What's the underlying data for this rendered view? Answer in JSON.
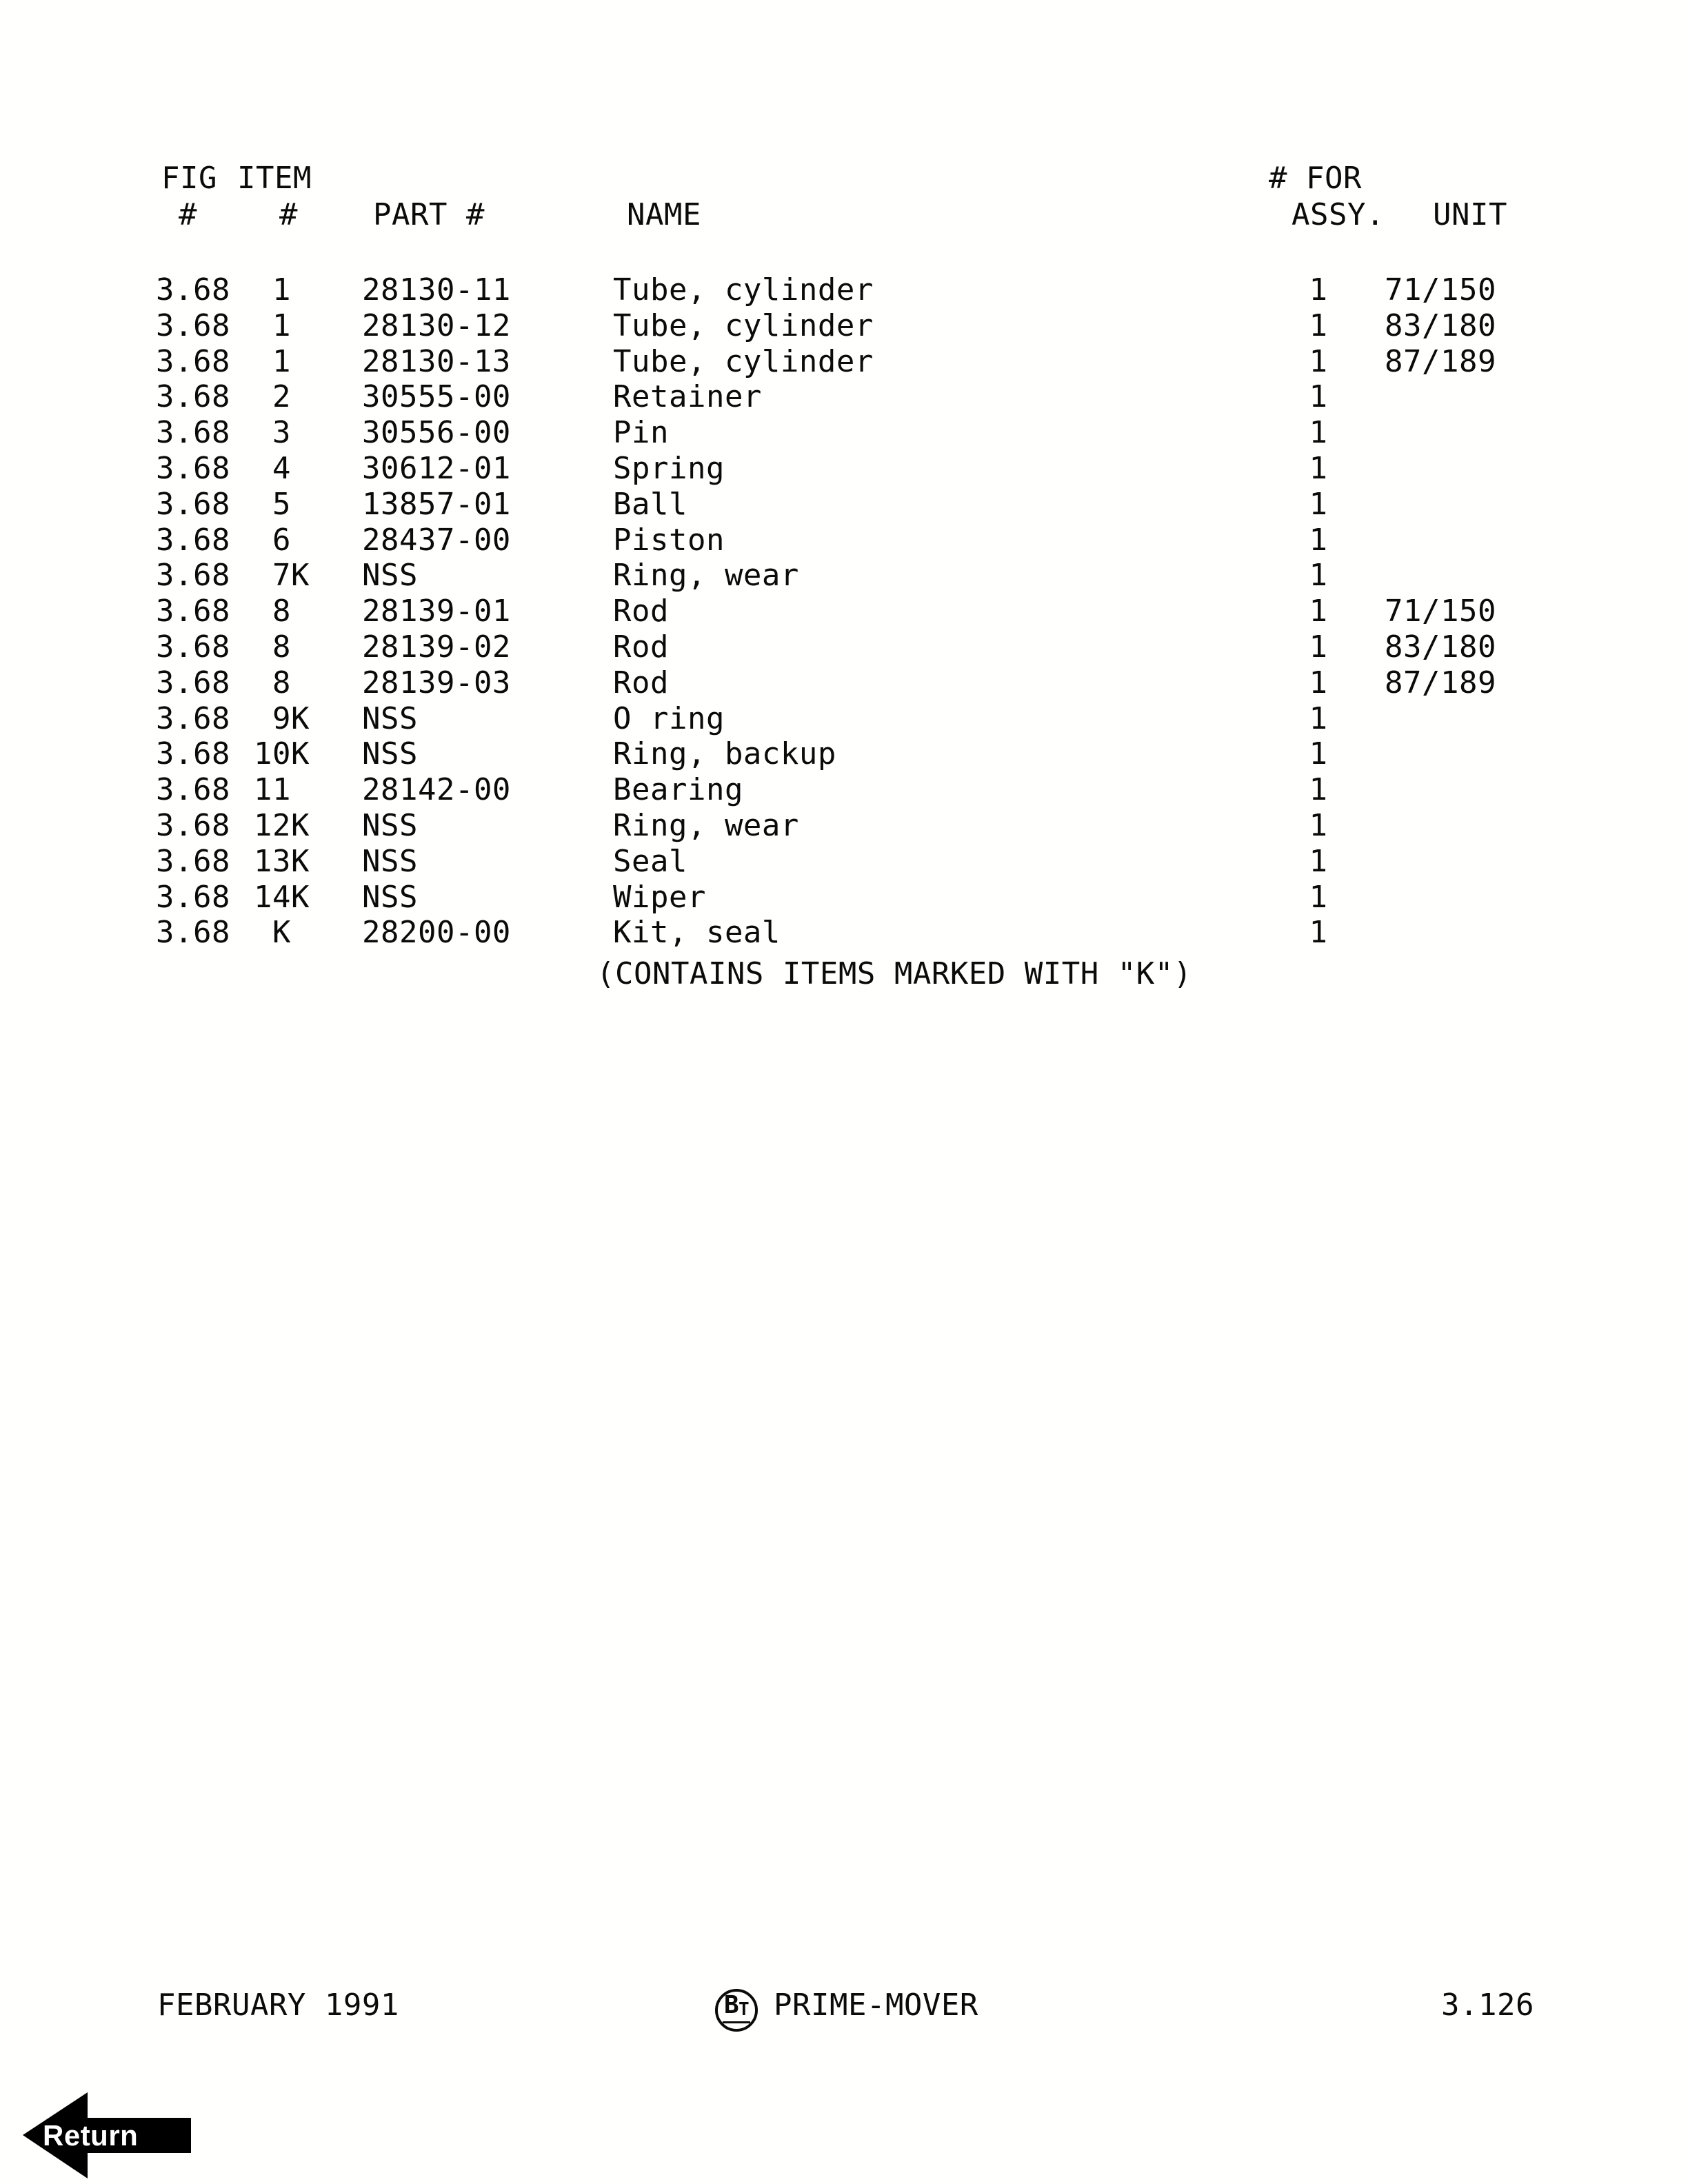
{
  "page": {
    "background": "#ffffff",
    "ink": "#0b0b0b"
  },
  "table": {
    "header": {
      "fig_line1": "FIG",
      "item_line1": "ITEM",
      "assy_line1": "# FOR",
      "fig_line2": "#",
      "item_line2": "#",
      "part_line2": "PART #",
      "name_line2": "NAME",
      "assy_line2": "ASSY.",
      "unit_line2": "UNIT"
    },
    "rows": [
      {
        "fig": "3.68",
        "item": "1",
        "part": "28130-11",
        "name": "Tube, cylinder",
        "qty": "1",
        "unit": "71/150"
      },
      {
        "fig": "3.68",
        "item": "1",
        "part": "28130-12",
        "name": "Tube, cylinder",
        "qty": "1",
        "unit": "83/180"
      },
      {
        "fig": "3.68",
        "item": "1",
        "part": "28130-13",
        "name": "Tube, cylinder",
        "qty": "1",
        "unit": "87/189"
      },
      {
        "fig": "3.68",
        "item": "2",
        "part": "30555-00",
        "name": "Retainer",
        "qty": "1",
        "unit": ""
      },
      {
        "fig": "3.68",
        "item": "3",
        "part": "30556-00",
        "name": "Pin",
        "qty": "1",
        "unit": ""
      },
      {
        "fig": "3.68",
        "item": "4",
        "part": "30612-01",
        "name": "Spring",
        "qty": "1",
        "unit": ""
      },
      {
        "fig": "3.68",
        "item": "5",
        "part": "13857-01",
        "name": "Ball",
        "qty": "1",
        "unit": ""
      },
      {
        "fig": "3.68",
        "item": "6",
        "part": "28437-00",
        "name": "Piston",
        "qty": "1",
        "unit": ""
      },
      {
        "fig": "3.68",
        "item": "7K",
        "part": "NSS",
        "name": "Ring, wear",
        "qty": "1",
        "unit": ""
      },
      {
        "fig": "3.68",
        "item": "8",
        "part": "28139-01",
        "name": "Rod",
        "qty": "1",
        "unit": "71/150"
      },
      {
        "fig": "3.68",
        "item": "8",
        "part": "28139-02",
        "name": "Rod",
        "qty": "1",
        "unit": "83/180"
      },
      {
        "fig": "3.68",
        "item": "8",
        "part": "28139-03",
        "name": "Rod",
        "qty": "1",
        "unit": "87/189"
      },
      {
        "fig": "3.68",
        "item": "9K",
        "part": "NSS",
        "name": "O ring",
        "qty": "1",
        "unit": ""
      },
      {
        "fig": "3.68",
        "item": "10K",
        "part": "NSS",
        "name": "Ring, backup",
        "qty": "1",
        "unit": ""
      },
      {
        "fig": "3.68",
        "item": "11",
        "part": "28142-00",
        "name": "Bearing",
        "qty": "1",
        "unit": ""
      },
      {
        "fig": "3.68",
        "item": "12K",
        "part": "NSS",
        "name": "Ring, wear",
        "qty": "1",
        "unit": ""
      },
      {
        "fig": "3.68",
        "item": "13K",
        "part": "NSS",
        "name": "Seal",
        "qty": "1",
        "unit": ""
      },
      {
        "fig": "3.68",
        "item": "14K",
        "part": "NSS",
        "name": "Wiper",
        "qty": "1",
        "unit": ""
      },
      {
        "fig": "3.68",
        "item": "K",
        "part": "28200-00",
        "name": "Kit, seal",
        "qty": "1",
        "unit": ""
      }
    ],
    "note": "(CONTAINS ITEMS MARKED WITH \"K\")"
  },
  "footer": {
    "date": "FEBRUARY 1991",
    "logo_b": "B",
    "logo_t": "T",
    "brand": "PRIME-MOVER",
    "page_number": "3.126"
  },
  "return_button": {
    "label": "Return"
  }
}
